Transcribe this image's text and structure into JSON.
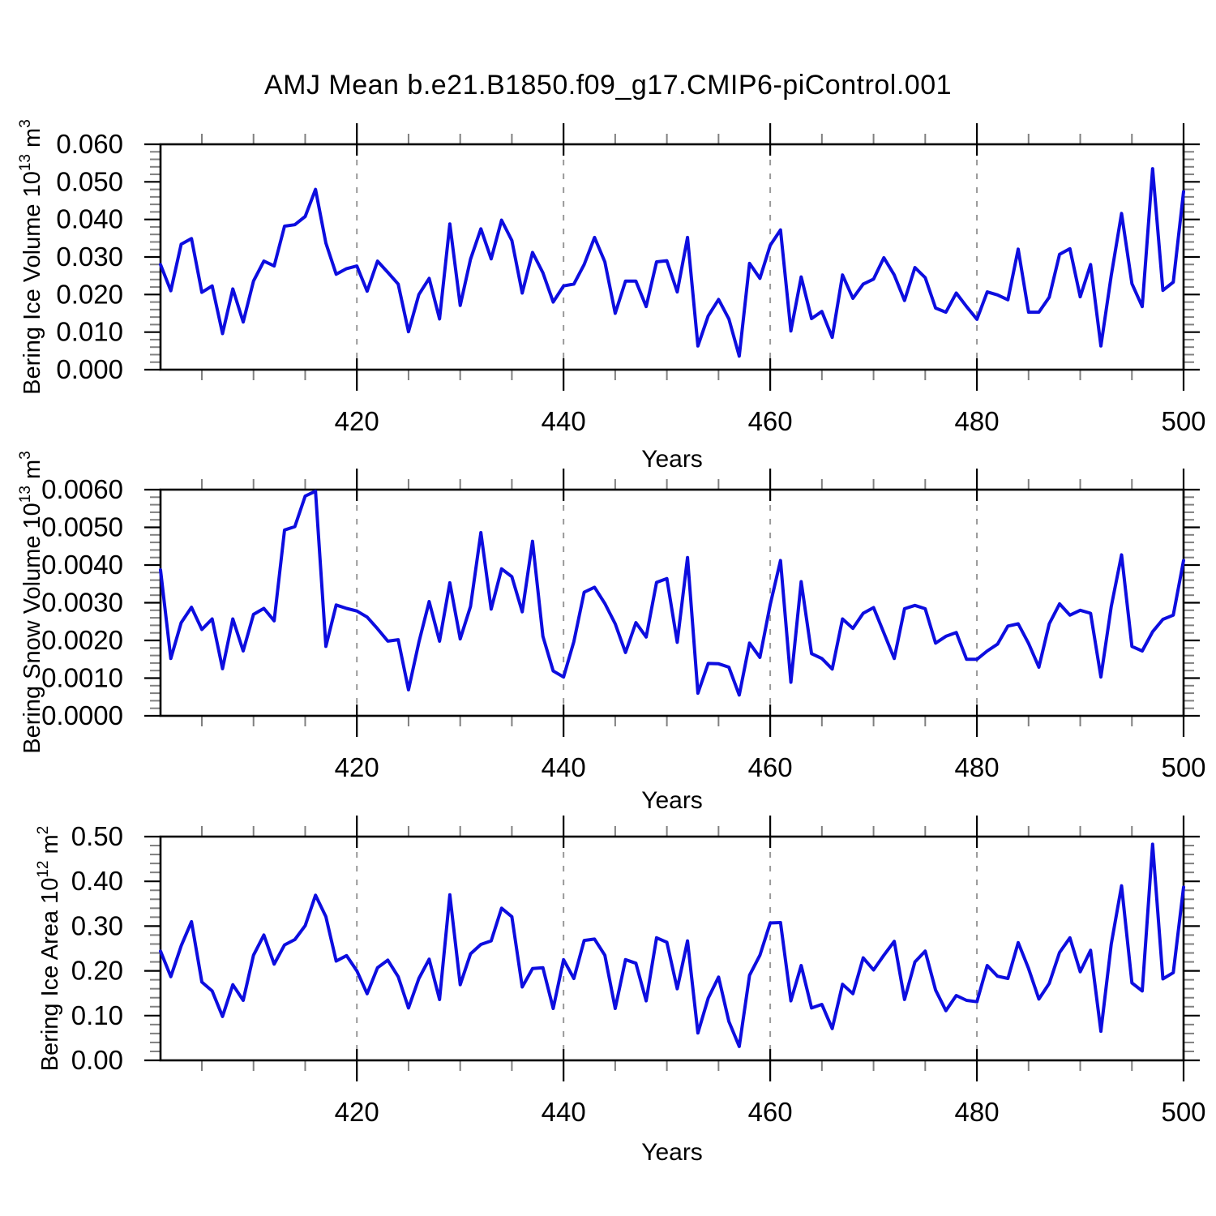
{
  "title": "AMJ Mean b.e21.B1850.f09_g17.CMIP6-piControl.001",
  "line_color": "#0D0DDF",
  "grid_color": "#999999",
  "minor_tick_color": "#808080",
  "axis_color": "#000000",
  "chart_data": [
    {
      "type": "line",
      "id": "ice-volume",
      "ylabel": {
        "prefix": "Bering Ice Volume 10",
        "exp": "13",
        "unit": " m",
        "unit_exp": "3"
      },
      "xlabel": "Years",
      "ylim": [
        0,
        0.06
      ],
      "ytick_step": 0.01,
      "yminor_step": 0.002,
      "ytick_labels": [
        "0.000",
        "0.010",
        "0.020",
        "0.030",
        "0.040",
        "0.050",
        "0.060"
      ],
      "x_start": 401,
      "x_end": 500,
      "xticks": [
        420,
        440,
        460,
        480,
        500
      ],
      "xtick_labels": [
        "420",
        "440",
        "460",
        "480",
        "500"
      ],
      "xminor_step": 5,
      "grid_years": [
        420,
        440,
        460,
        480
      ],
      "values": [
        0.028,
        0.021,
        0.0334,
        0.0349,
        0.0206,
        0.0223,
        0.0096,
        0.0215,
        0.0127,
        0.0236,
        0.0289,
        0.0276,
        0.0382,
        0.0386,
        0.0408,
        0.048,
        0.0337,
        0.0254,
        0.0269,
        0.0276,
        0.0209,
        0.0289,
        0.0259,
        0.0228,
        0.0101,
        0.02,
        0.0243,
        0.0135,
        0.0388,
        0.0171,
        0.0294,
        0.0375,
        0.0295,
        0.0398,
        0.0344,
        0.0204,
        0.0312,
        0.0258,
        0.018,
        0.0223,
        0.0228,
        0.028,
        0.0352,
        0.0287,
        0.015,
        0.0236,
        0.0236,
        0.0168,
        0.0287,
        0.029,
        0.0207,
        0.0352,
        0.0063,
        0.0143,
        0.0187,
        0.0135,
        0.0036,
        0.0283,
        0.0243,
        0.0331,
        0.0372,
        0.0103,
        0.0247,
        0.0136,
        0.0155,
        0.0086,
        0.0252,
        0.019,
        0.0228,
        0.0241,
        0.0298,
        0.0252,
        0.0184,
        0.0272,
        0.0245,
        0.0164,
        0.0153,
        0.0204,
        0.0168,
        0.0134,
        0.0207,
        0.0199,
        0.0186,
        0.0321,
        0.0153,
        0.0153,
        0.0193,
        0.0307,
        0.0322,
        0.0194,
        0.028,
        0.0063,
        0.0251,
        0.0416,
        0.0229,
        0.0168,
        0.0535,
        0.0211,
        0.0233,
        0.0474
      ]
    },
    {
      "type": "line",
      "id": "snow-volume",
      "ylabel": {
        "prefix": "Bering Snow Volume 10",
        "exp": "13",
        "unit": " m",
        "unit_exp": "3"
      },
      "xlabel": "Years",
      "ylim": [
        0,
        0.006
      ],
      "ytick_step": 0.001,
      "yminor_step": 0.0002,
      "ytick_labels": [
        "0.0000",
        "0.0010",
        "0.0020",
        "0.0030",
        "0.0040",
        "0.0050",
        "0.0060"
      ],
      "x_start": 401,
      "x_end": 500,
      "xticks": [
        420,
        440,
        460,
        480,
        500
      ],
      "xtick_labels": [
        "420",
        "440",
        "460",
        "480",
        "500"
      ],
      "xminor_step": 5,
      "grid_years": [
        420,
        440,
        460,
        480
      ],
      "values": [
        0.00387,
        0.00152,
        0.00247,
        0.00288,
        0.00229,
        0.00257,
        0.00125,
        0.00257,
        0.00172,
        0.00269,
        0.00285,
        0.00252,
        0.00493,
        0.00502,
        0.00583,
        0.00596,
        0.00184,
        0.00294,
        0.00285,
        0.00278,
        0.00262,
        0.00231,
        0.00198,
        0.00202,
        0.00069,
        0.00195,
        0.00303,
        0.00198,
        0.00353,
        0.00204,
        0.0029,
        0.00486,
        0.00283,
        0.0039,
        0.00369,
        0.00276,
        0.00463,
        0.00211,
        0.00119,
        0.00103,
        0.00197,
        0.00328,
        0.00341,
        0.00298,
        0.00244,
        0.00168,
        0.00247,
        0.00209,
        0.00354,
        0.00364,
        0.00195,
        0.0042,
        0.0006,
        0.00139,
        0.00138,
        0.00129,
        0.00055,
        0.00193,
        0.00155,
        0.00295,
        0.00412,
        0.00089,
        0.00356,
        0.00165,
        0.00152,
        0.00124,
        0.00257,
        0.00232,
        0.00272,
        0.00287,
        0.0022,
        0.00152,
        0.00284,
        0.00293,
        0.00284,
        0.00193,
        0.00211,
        0.00221,
        0.0015,
        0.0015,
        0.00172,
        0.0019,
        0.00238,
        0.00244,
        0.00192,
        0.00129,
        0.00244,
        0.00297,
        0.00267,
        0.0028,
        0.00272,
        0.00103,
        0.0029,
        0.00427,
        0.00184,
        0.00172,
        0.00223,
        0.00256,
        0.00267,
        0.00412
      ]
    },
    {
      "type": "line",
      "id": "ice-area",
      "ylabel": {
        "prefix": "Bering Ice Area 10",
        "exp": "12",
        "unit": " m",
        "unit_exp": "2"
      },
      "xlabel": "Years",
      "ylim": [
        0,
        0.5
      ],
      "ytick_step": 0.1,
      "yminor_step": 0.02,
      "ytick_labels": [
        "0.00",
        "0.10",
        "0.20",
        "0.30",
        "0.40",
        "0.50"
      ],
      "x_start": 401,
      "x_end": 500,
      "xticks": [
        420,
        440,
        460,
        480,
        500
      ],
      "xtick_labels": [
        "420",
        "440",
        "460",
        "480",
        "500"
      ],
      "xminor_step": 5,
      "grid_years": [
        420,
        440,
        460,
        480
      ],
      "values": [
        0.244,
        0.187,
        0.256,
        0.31,
        0.175,
        0.155,
        0.098,
        0.169,
        0.134,
        0.235,
        0.28,
        0.215,
        0.258,
        0.27,
        0.301,
        0.369,
        0.321,
        0.222,
        0.234,
        0.2,
        0.149,
        0.207,
        0.224,
        0.187,
        0.117,
        0.183,
        0.226,
        0.136,
        0.37,
        0.169,
        0.238,
        0.259,
        0.267,
        0.34,
        0.321,
        0.164,
        0.205,
        0.207,
        0.116,
        0.225,
        0.183,
        0.268,
        0.271,
        0.235,
        0.116,
        0.225,
        0.217,
        0.133,
        0.274,
        0.264,
        0.16,
        0.267,
        0.061,
        0.139,
        0.186,
        0.087,
        0.031,
        0.19,
        0.235,
        0.307,
        0.308,
        0.133,
        0.212,
        0.117,
        0.125,
        0.071,
        0.17,
        0.149,
        0.229,
        0.202,
        0.235,
        0.266,
        0.136,
        0.22,
        0.244,
        0.157,
        0.111,
        0.145,
        0.134,
        0.131,
        0.212,
        0.188,
        0.183,
        0.263,
        0.205,
        0.137,
        0.172,
        0.241,
        0.274,
        0.198,
        0.246,
        0.065,
        0.26,
        0.39,
        0.173,
        0.155,
        0.483,
        0.182,
        0.196,
        0.387
      ]
    }
  ]
}
